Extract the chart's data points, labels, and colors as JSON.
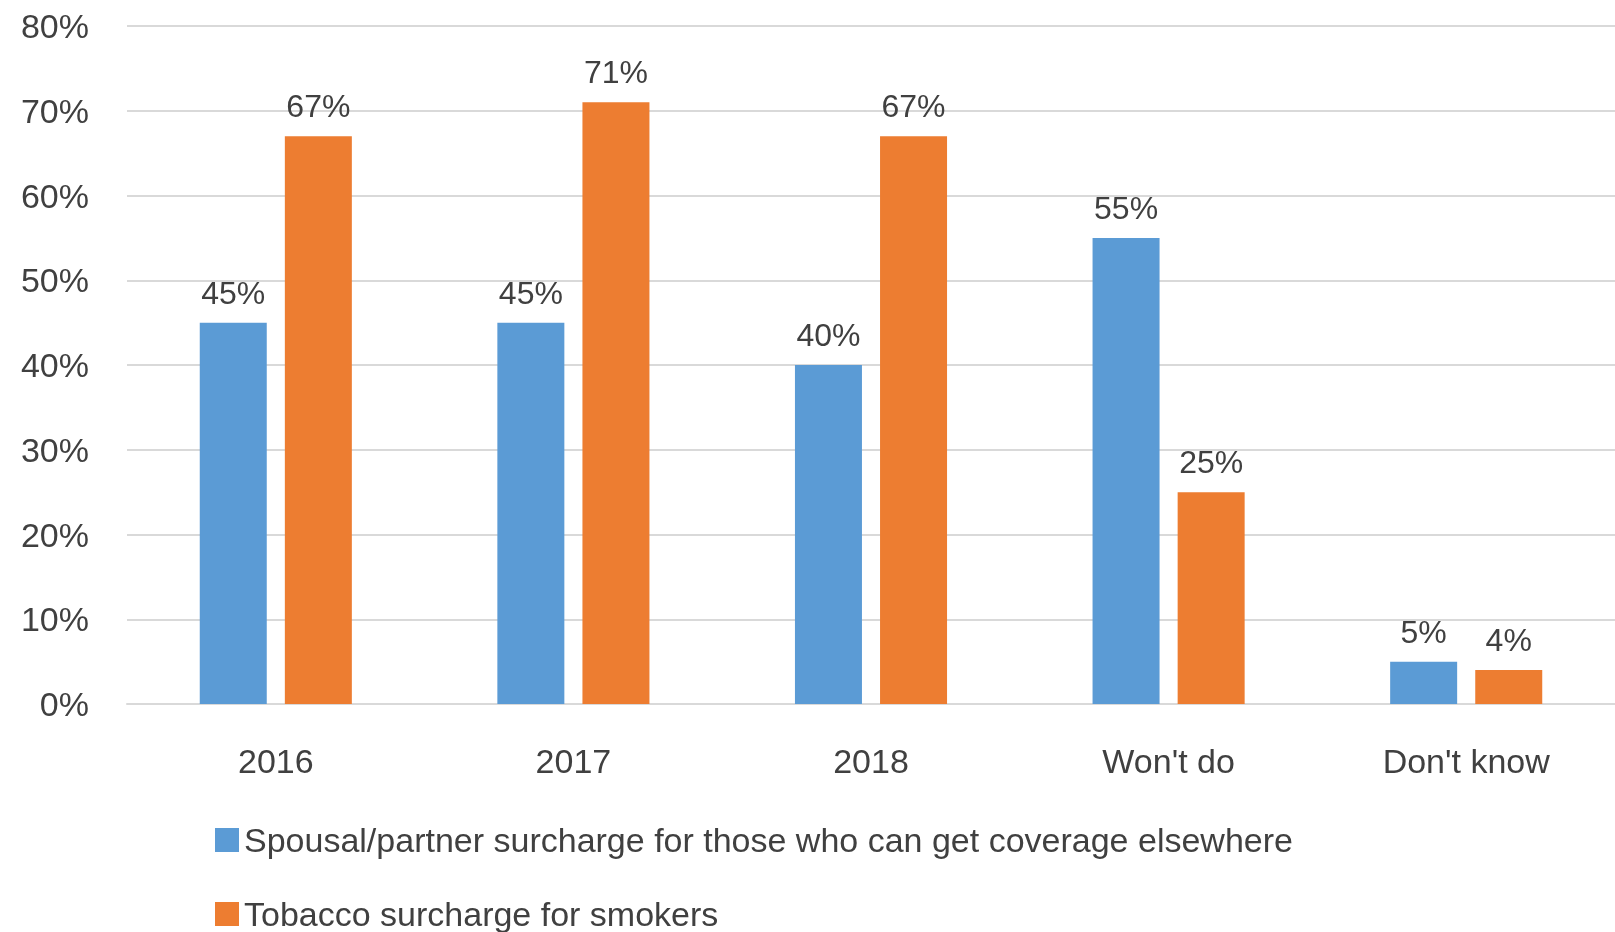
{
  "chart_data": {
    "type": "bar",
    "categories": [
      "2016",
      "2017",
      "2018",
      "Won't do",
      "Don't know"
    ],
    "series": [
      {
        "name": "Spousal/partner surcharge for those who can get coverage elsewhere",
        "color": "#5b9bd5",
        "values": [
          45,
          45,
          40,
          55,
          5
        ],
        "value_labels": [
          "45%",
          "45%",
          "40%",
          "55%",
          "5%"
        ]
      },
      {
        "name": "Tobacco surcharge for smokers",
        "color": "#ed7d31",
        "values": [
          67,
          71,
          67,
          25,
          4
        ],
        "value_labels": [
          "67%",
          "71%",
          "67%",
          "25%",
          "4%"
        ]
      }
    ],
    "ylim": [
      0,
      80
    ],
    "yticks": [
      {
        "value": 0,
        "label": "0%"
      },
      {
        "value": 10,
        "label": "10%"
      },
      {
        "value": 20,
        "label": "20%"
      },
      {
        "value": 30,
        "label": "30%"
      },
      {
        "value": 40,
        "label": "40%"
      },
      {
        "value": 50,
        "label": "50%"
      },
      {
        "value": 60,
        "label": "60%"
      },
      {
        "value": 70,
        "label": "70%"
      },
      {
        "value": 80,
        "label": "80%"
      }
    ],
    "grid": "y",
    "legend": "bottom"
  }
}
